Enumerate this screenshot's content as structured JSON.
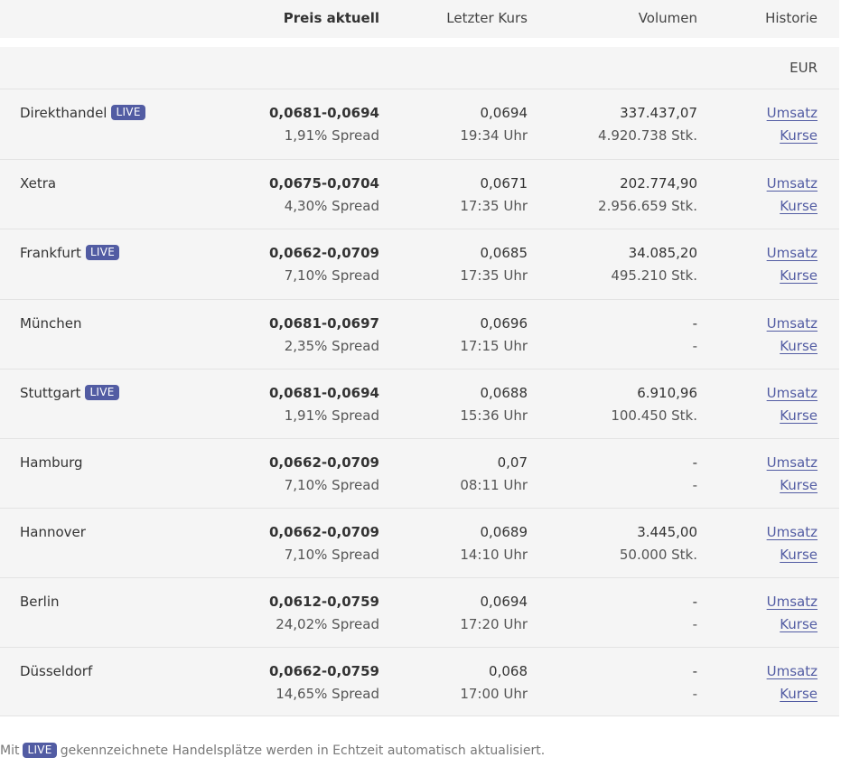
{
  "header": {
    "price_label": "Preis aktuell",
    "last_label": "Letzter Kurs",
    "volume_label": "Volumen",
    "history_label": "Historie"
  },
  "currency": "EUR",
  "live_badge": "LIVE",
  "rows": [
    {
      "name": "Direkthandel",
      "live": true,
      "price": "0,0681-0,0694",
      "spread": "1,91% Spread",
      "last": "0,0694",
      "time": "19:34 Uhr",
      "volume": "337.437,07",
      "pieces": "4.920.738 Stk.",
      "umsatz": "Umsatz",
      "kurse": "Kurse"
    },
    {
      "name": "Xetra",
      "live": false,
      "price": "0,0675-0,0704",
      "spread": "4,30% Spread",
      "last": "0,0671",
      "time": "17:35 Uhr",
      "volume": "202.774,90",
      "pieces": "2.956.659 Stk.",
      "umsatz": "Umsatz",
      "kurse": "Kurse"
    },
    {
      "name": "Frankfurt",
      "live": true,
      "price": "0,0662-0,0709",
      "spread": "7,10% Spread",
      "last": "0,0685",
      "time": "17:35 Uhr",
      "volume": "34.085,20",
      "pieces": "495.210 Stk.",
      "umsatz": "Umsatz",
      "kurse": "Kurse"
    },
    {
      "name": "München",
      "live": false,
      "price": "0,0681-0,0697",
      "spread": "2,35% Spread",
      "last": "0,0696",
      "time": "17:15 Uhr",
      "volume": "-",
      "pieces": "-",
      "umsatz": "Umsatz",
      "kurse": "Kurse"
    },
    {
      "name": "Stuttgart",
      "live": true,
      "price": "0,0681-0,0694",
      "spread": "1,91% Spread",
      "last": "0,0688",
      "time": "15:36 Uhr",
      "volume": "6.910,96",
      "pieces": "100.450 Stk.",
      "umsatz": "Umsatz",
      "kurse": "Kurse"
    },
    {
      "name": "Hamburg",
      "live": false,
      "price": "0,0662-0,0709",
      "spread": "7,10% Spread",
      "last": "0,07",
      "time": "08:11 Uhr",
      "volume": "-",
      "pieces": "-",
      "umsatz": "Umsatz",
      "kurse": "Kurse"
    },
    {
      "name": "Hannover",
      "live": false,
      "price": "0,0662-0,0709",
      "spread": "7,10% Spread",
      "last": "0,0689",
      "time": "14:10 Uhr",
      "volume": "3.445,00",
      "pieces": "50.000 Stk.",
      "umsatz": "Umsatz",
      "kurse": "Kurse"
    },
    {
      "name": "Berlin",
      "live": false,
      "price": "0,0612-0,0759",
      "spread": "24,02% Spread",
      "last": "0,0694",
      "time": "17:20 Uhr",
      "volume": "-",
      "pieces": "-",
      "umsatz": "Umsatz",
      "kurse": "Kurse"
    },
    {
      "name": "Düsseldorf",
      "live": false,
      "price": "0,0662-0,0759",
      "spread": "14,65% Spread",
      "last": "0,068",
      "time": "17:00 Uhr",
      "volume": "-",
      "pieces": "-",
      "umsatz": "Umsatz",
      "kurse": "Kurse"
    }
  ],
  "footer": {
    "prefix": "Mit",
    "suffix": "gekennzeichnete Handelsplätze werden in Echtzeit automatisch aktualisiert."
  },
  "colors": {
    "accent": "#525ca3",
    "row_background": "#f5f5f5",
    "divider": "#e3e3e3"
  }
}
